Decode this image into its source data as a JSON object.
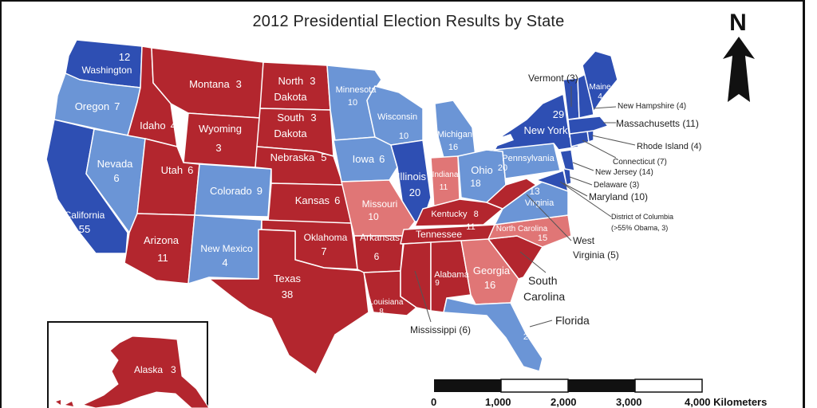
{
  "title": "2012 Presidential Election Results by State",
  "north_label": "N",
  "colors": {
    "dem_strong": "#2e4fb3",
    "dem_light": "#6b95d6",
    "rep_strong": "#b3262e",
    "rep_light": "#e07676",
    "ocean": "#ffffff"
  },
  "states": {
    "washington": {
      "name": "Washington",
      "ev": "12"
    },
    "oregon": {
      "name": "Oregon",
      "ev": "7"
    },
    "california": {
      "name": "California",
      "ev": "55"
    },
    "nevada": {
      "name": "Nevada",
      "ev": "6"
    },
    "idaho": {
      "name": "Idaho",
      "ev": "4"
    },
    "montana": {
      "name": "Montana",
      "ev": "3"
    },
    "wyoming": {
      "name": "Wyoming",
      "ev": "3"
    },
    "utah": {
      "name": "Utah",
      "ev": "6"
    },
    "arizona": {
      "name": "Arizona",
      "ev": "11"
    },
    "colorado": {
      "name": "Colorado",
      "ev": "9"
    },
    "new_mexico": {
      "name": "New Mexico",
      "ev": "4"
    },
    "north_dakota": {
      "name": "North Dakota",
      "ev": "3",
      "l1": "North",
      "l2": "Dakota"
    },
    "south_dakota": {
      "name": "South Dakota",
      "ev": "3",
      "l1": "South",
      "l2": "Dakota"
    },
    "nebraska": {
      "name": "Nebraska",
      "ev": "5"
    },
    "kansas": {
      "name": "Kansas",
      "ev": "6"
    },
    "oklahoma": {
      "name": "Oklahoma",
      "ev": "7"
    },
    "texas": {
      "name": "Texas",
      "ev": "38"
    },
    "minnesota": {
      "name": "Minnesota",
      "ev": "10"
    },
    "iowa": {
      "name": "Iowa",
      "ev": "6"
    },
    "missouri": {
      "name": "Missouri",
      "ev": "10"
    },
    "arkansas": {
      "name": "Arkansas",
      "ev": "6"
    },
    "louisiana": {
      "name": "Louisiana",
      "ev": "8"
    },
    "wisconsin": {
      "name": "Wisconsin",
      "ev": "10"
    },
    "illinois": {
      "name": "Illinois",
      "ev": "20"
    },
    "michigan": {
      "name": "Michigan",
      "ev": "16"
    },
    "indiana": {
      "name": "Indiana",
      "ev": "11"
    },
    "ohio": {
      "name": "Ohio",
      "ev": "18"
    },
    "kentucky": {
      "name": "Kentucky",
      "ev": "8"
    },
    "tennessee": {
      "name": "Tennessee",
      "ev": "11"
    },
    "alabama": {
      "name": "Alabama",
      "ev": "9"
    },
    "georgia": {
      "name": "Georgia",
      "ev": "16"
    },
    "pennsylvania": {
      "name": "Pennsylvania",
      "ev": "20"
    },
    "new_york": {
      "name": "New York",
      "ev": "29"
    },
    "virginia": {
      "name": "Virginia",
      "ev": "13"
    },
    "north_carolina": {
      "name": "North Carolina",
      "ev": "15"
    },
    "maine": {
      "name": "Maine",
      "ev": "4"
    },
    "alaska": {
      "name": "Alaska",
      "ev": "3"
    }
  },
  "callouts": {
    "vermont": "Vermont (3)",
    "new_hampshire": "New Hampshire (4)",
    "massachusetts": "Massachusetts (11)",
    "rhode_island": "Rhode Island (4)",
    "connecticut": "Connecticut (7)",
    "new_jersey": "New Jersey (14)",
    "delaware": "Delaware (3)",
    "maryland": "Maryland (10)",
    "dc_1": "District of Columbia",
    "dc_2": "(>55% Obama, 3)",
    "west_virginia_1": "West",
    "west_virginia_2": "Virginia (5)",
    "south_carolina_1": "South",
    "south_carolina_2": "Carolina",
    "florida": "Florida",
    "florida_ev": "29",
    "mississippi": "Mississippi (6)"
  },
  "scale_bar": {
    "ticks": [
      "0",
      "1,000",
      "2,000",
      "3,000",
      "4,000 Kilometers"
    ]
  }
}
